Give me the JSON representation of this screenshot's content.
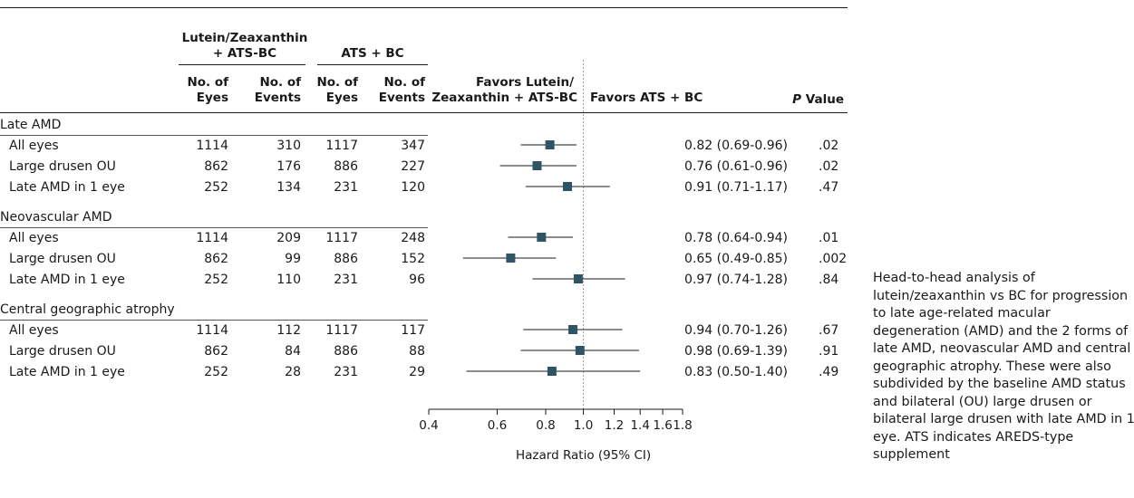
{
  "headers": {
    "group1": [
      "Lutein/Zeaxanthin",
      "+ ATS-BC"
    ],
    "group2": "ATS + BC",
    "g1_eyes": [
      "No. of",
      "Eyes"
    ],
    "g1_events": [
      "No. of",
      "Events"
    ],
    "g2_eyes": [
      "No. of",
      "Eyes"
    ],
    "g2_events": [
      "No. of",
      "Events"
    ],
    "favors_left": [
      "Favors Lutein/",
      "Zeaxanthin + ATS-BC"
    ],
    "favors_right": "Favors ATS + BC",
    "p_value_italic": "P",
    "p_value_rest": " Value"
  },
  "caption": "Head-to-head analysis of lutein/zeaxanthin vs BC for progression to late age-related macular degeneration (AMD) and the 2 forms of late AMD, neovascular AMD and central geographic atrophy. These were also subdivided by the baseline AMD status and bilateral (OU) large drusen or bilateral large drusen with late AMD in 1 eye. ATS indicates AREDS-type supplement",
  "colors": {
    "marker": "#2f5466",
    "line": "#1a1a1a",
    "reference_line": "#999999"
  },
  "chart_data": {
    "type": "forest",
    "xlabel": "Hazard Ratio (95% CI)",
    "x_scale": "log",
    "xlim": [
      0.4,
      1.8
    ],
    "xticks": [
      0.4,
      0.6,
      0.8,
      1.0,
      1.2,
      1.4,
      1.6,
      1.8
    ],
    "xtick_labels": [
      "0.4",
      "0.6",
      "0.8",
      "1.0",
      "1.2",
      "1.4",
      "1.6",
      "1.8"
    ],
    "reference_value": 1.0,
    "groups": [
      {
        "name": "Late AMD",
        "rows": [
          {
            "label": "All eyes",
            "eyes1": "1114",
            "events1": "310",
            "eyes2": "1117",
            "events2": "347",
            "hr": 0.82,
            "lo": 0.69,
            "hi": 0.96,
            "hr_text": "0.82 (0.69-0.96)",
            "p": ".02"
          },
          {
            "label": "Large drusen OU",
            "eyes1": "862",
            "events1": "176",
            "eyes2": "886",
            "events2": "227",
            "hr": 0.76,
            "lo": 0.61,
            "hi": 0.96,
            "hr_text": "0.76 (0.61-0.96)",
            "p": ".02"
          },
          {
            "label": "Late AMD in 1 eye",
            "eyes1": "252",
            "events1": "134",
            "eyes2": "231",
            "events2": "120",
            "hr": 0.91,
            "lo": 0.71,
            "hi": 1.17,
            "hr_text": "0.91 (0.71-1.17)",
            "p": ".47"
          }
        ]
      },
      {
        "name": "Neovascular AMD",
        "rows": [
          {
            "label": "All eyes",
            "eyes1": "1114",
            "events1": "209",
            "eyes2": "1117",
            "events2": "248",
            "hr": 0.78,
            "lo": 0.64,
            "hi": 0.94,
            "hr_text": "0.78 (0.64-0.94)",
            "p": ".01"
          },
          {
            "label": "Large drusen OU",
            "eyes1": "862",
            "events1": "99",
            "eyes2": "886",
            "events2": "152",
            "hr": 0.65,
            "lo": 0.49,
            "hi": 0.85,
            "hr_text": "0.65 (0.49-0.85)",
            "p": ".002"
          },
          {
            "label": "Late AMD in 1 eye",
            "eyes1": "252",
            "events1": "110",
            "eyes2": "231",
            "events2": "96",
            "hr": 0.97,
            "lo": 0.74,
            "hi": 1.28,
            "hr_text": "0.97 (0.74-1.28)",
            "p": ".84"
          }
        ]
      },
      {
        "name": "Central geographic atrophy",
        "rows": [
          {
            "label": "All eyes",
            "eyes1": "1114",
            "events1": "112",
            "eyes2": "1117",
            "events2": "117",
            "hr": 0.94,
            "lo": 0.7,
            "hi": 1.26,
            "hr_text": "0.94 (0.70-1.26)",
            "p": ".67"
          },
          {
            "label": "Large drusen OU",
            "eyes1": "862",
            "events1": "84",
            "eyes2": "886",
            "events2": "88",
            "hr": 0.98,
            "lo": 0.69,
            "hi": 1.39,
            "hr_text": "0.98 (0.69-1.39)",
            "p": ".91"
          },
          {
            "label": "Late AMD in 1 eye",
            "eyes1": "252",
            "events1": "28",
            "eyes2": "231",
            "events2": "29",
            "hr": 0.83,
            "lo": 0.5,
            "hi": 1.4,
            "hr_text": "0.83 (0.50-1.40)",
            "p": ".49"
          }
        ]
      }
    ]
  }
}
